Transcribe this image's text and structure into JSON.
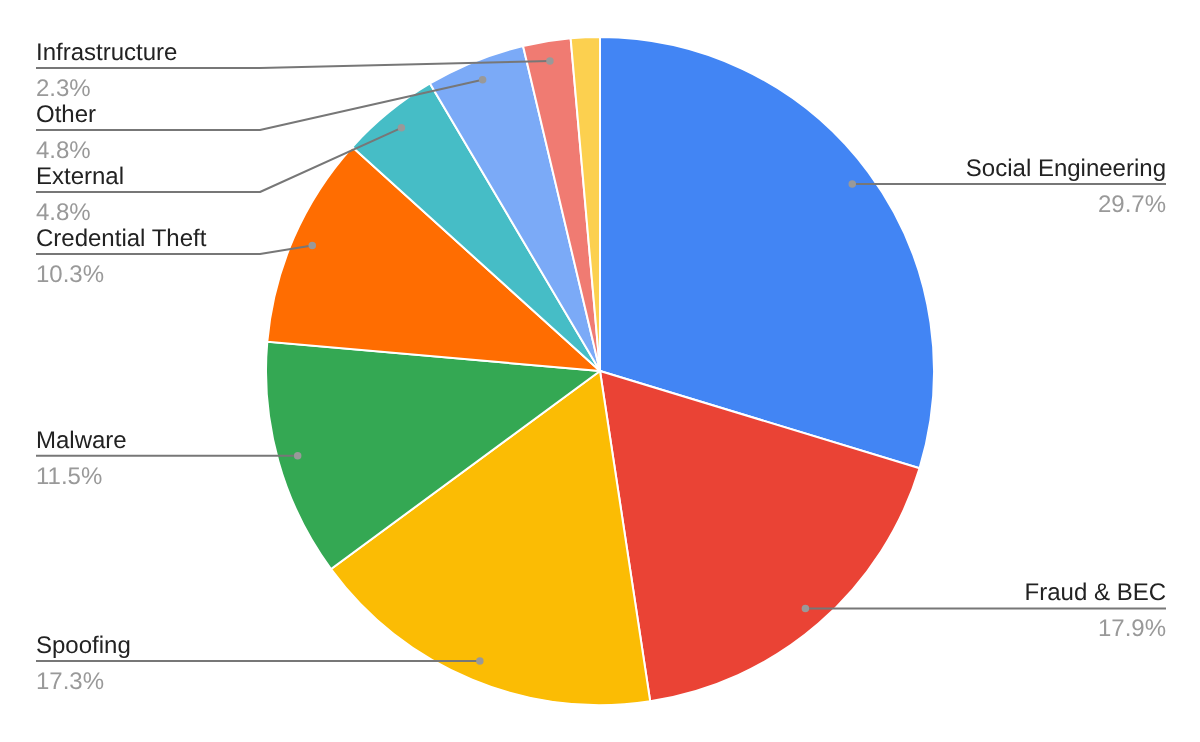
{
  "chart_data": {
    "type": "pie",
    "categories": [
      "Social Engineering",
      "Fraud & BEC",
      "Spoofing",
      "Malware",
      "Credential Theft",
      "External",
      "Other",
      "Infrastructure",
      null
    ],
    "values": [
      29.7,
      17.9,
      17.3,
      11.5,
      10.3,
      4.8,
      4.8,
      2.3,
      1.4
    ],
    "value_labels": [
      "29.7%",
      "17.9%",
      "17.3%",
      "11.5%",
      "10.3%",
      "4.8%",
      "4.8%",
      "2.3%",
      null
    ],
    "colors": [
      "#4285f4",
      "#ea4335",
      "#fbbc04",
      "#34a853",
      "#ff6d01",
      "#46bdc6",
      "#7baaf7",
      "#f07b72",
      "#fcd04f"
    ]
  }
}
